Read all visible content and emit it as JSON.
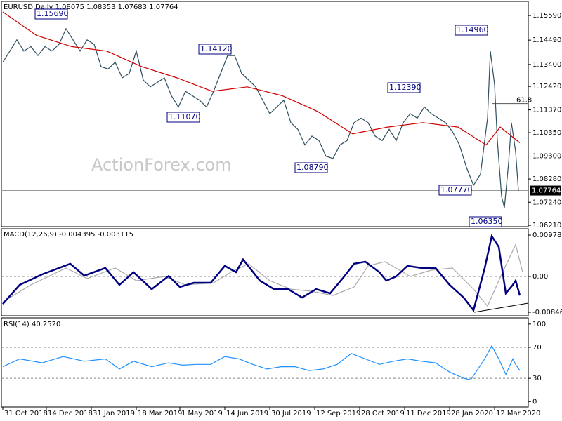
{
  "chart_data": [
    {
      "type": "line",
      "title": "EURUSD,Daily  1.08075 1.08353 1.07683 1.07764",
      "watermark": "ActionForex.com",
      "xlim": [
        -1,
        374
      ],
      "ylim": [
        1.0615,
        1.1622
      ],
      "grid": false,
      "yticks": [
        {
          "value": 1.1559,
          "label": "1.15590"
        },
        {
          "value": 1.1449,
          "label": "1.14490"
        },
        {
          "value": 1.134,
          "label": "1.13400"
        },
        {
          "value": 1.1242,
          "label": "1.12420"
        },
        {
          "value": 1.1137,
          "label": "1.11370"
        },
        {
          "value": 1.1035,
          "label": "1.10350"
        },
        {
          "value": 1.093,
          "label": "1.09300"
        },
        {
          "value": 1.0828,
          "label": "1.08280"
        },
        {
          "value": 1.0724,
          "label": "1.07240"
        },
        {
          "value": 1.0621,
          "label": "1.06210"
        }
      ],
      "last_price": 1.07764,
      "fib_level": {
        "value": 1.1165,
        "label": "61.8"
      },
      "annotations": [
        "1.15690",
        "1.14120",
        "1.11070",
        "1.08790",
        "1.12390",
        "1.14960",
        "1.07770",
        "1.06350"
      ],
      "series": [
        {
          "color": "#2f4f5f",
          "width": 1.2,
          "x": [
            0,
            5,
            10,
            15,
            20,
            25,
            30,
            35,
            40,
            45,
            50,
            55,
            60,
            65,
            70,
            75,
            80,
            85,
            90,
            95,
            100,
            105,
            110,
            115,
            120,
            125,
            130,
            135,
            140,
            145,
            150,
            155,
            160,
            165,
            170,
            175,
            180,
            185,
            190,
            195,
            200,
            205,
            210,
            215,
            220,
            225,
            230,
            235,
            240,
            245,
            250,
            255,
            260,
            265,
            270,
            275,
            280,
            285,
            290,
            295,
            300,
            305,
            310,
            315,
            320,
            325,
            330,
            335,
            340,
            345,
            347,
            350,
            352,
            355,
            357,
            360,
            362,
            365,
            367
          ],
          "values": [
            1.135,
            1.14,
            1.145,
            1.14,
            1.142,
            1.138,
            1.142,
            1.14,
            1.143,
            1.15,
            1.145,
            1.14,
            1.145,
            1.143,
            1.133,
            1.132,
            1.135,
            1.128,
            1.13,
            1.14,
            1.127,
            1.124,
            1.126,
            1.128,
            1.12,
            1.115,
            1.122,
            1.12,
            1.118,
            1.115,
            1.122,
            1.13,
            1.138,
            1.138,
            1.13,
            1.127,
            1.124,
            1.118,
            1.112,
            1.115,
            1.118,
            1.108,
            1.105,
            1.098,
            1.102,
            1.1,
            1.093,
            1.092,
            1.098,
            1.1,
            1.108,
            1.11,
            1.108,
            1.102,
            1.1,
            1.105,
            1.1,
            1.108,
            1.112,
            1.11,
            1.115,
            1.112,
            1.11,
            1.108,
            1.104,
            1.098,
            1.088,
            1.08,
            1.085,
            1.11,
            1.14,
            1.125,
            1.1,
            1.075,
            1.07,
            1.09,
            1.108,
            1.095,
            1.0776
          ]
        },
        {
          "color": "#cc0000",
          "width": 1.2,
          "x": [
            0,
            24,
            49,
            74,
            99,
            124,
            149,
            174,
            199,
            224,
            249,
            274,
            299,
            324,
            344,
            354,
            368
          ],
          "values": [
            1.1575,
            1.147,
            1.142,
            1.14,
            1.133,
            1.128,
            1.122,
            1.124,
            1.12,
            1.113,
            1.103,
            1.106,
            1.108,
            1.106,
            1.098,
            1.106,
            1.099
          ]
        }
      ]
    },
    {
      "type": "line",
      "title": "MACD(12,26,9) -0.004395 -0.003115",
      "xlim": [
        -1,
        374
      ],
      "ylim": [
        -0.00929,
        0.01127
      ],
      "grid": true,
      "yticks": [
        0.00978,
        {
          "value": 0,
          "label": "0.00"
        },
        -0.008464
      ],
      "series": [
        {
          "color": "#aaaaaa",
          "width": 1.2,
          "x": [
            0,
            20,
            45,
            60,
            80,
            95,
            115,
            130,
            150,
            165,
            175,
            190,
            205,
            220,
            235,
            250,
            260,
            272,
            290,
            305,
            320,
            335,
            345,
            355,
            365,
            370
          ],
          "values": [
            -0.006,
            -0.002,
            0.002,
            -0.0005,
            0.002,
            -0.001,
            0,
            -0.002,
            -0.0015,
            0.0015,
            0.003,
            -0.001,
            -0.003,
            -0.0035,
            -0.0045,
            -0.0025,
            0.0025,
            0.0035,
            0,
            0.0015,
            0.002,
            -0.003,
            -0.007,
            0.0005,
            0.0075,
            0.001
          ]
        },
        {
          "color": "#000080",
          "width": 2.5,
          "x": [
            0,
            12,
            28,
            48,
            58,
            73,
            83,
            93,
            106,
            118,
            126,
            136,
            148,
            158,
            166,
            171,
            183,
            193,
            203,
            213,
            223,
            233,
            243,
            250,
            258,
            268,
            273,
            280,
            288,
            298,
            308,
            318,
            328,
            335,
            343,
            348,
            353,
            358,
            363,
            365,
            368
          ],
          "values": [
            -0.0065,
            -0.002,
            0.0005,
            0.003,
            0.0002,
            0.002,
            -0.002,
            0.001,
            -0.003,
            0.0001,
            -0.0025,
            -0.0015,
            -0.0015,
            0.0025,
            0.001,
            0.004,
            -0.001,
            -0.003,
            -0.003,
            -0.005,
            -0.003,
            -0.004,
            0,
            0.003,
            0.0035,
            0.001,
            -0.001,
            0,
            0.0025,
            0.002,
            0.002,
            -0.002,
            -0.005,
            -0.008,
            0.002,
            0.0095,
            0.007,
            -0.004,
            -0.002,
            -0.001,
            -0.0045
          ]
        }
      ]
    },
    {
      "type": "line",
      "title": "RSI(14) 40.2520",
      "xlim": [
        -1,
        374
      ],
      "ylim": [
        -7,
        108
      ],
      "grid": true,
      "yticks": [
        100,
        70,
        30,
        0
      ],
      "xticks": [
        {
          "value": 0,
          "label": "31 Oct 2018"
        },
        {
          "value": 31,
          "label": "14 Dec 2018"
        },
        {
          "value": 63,
          "label": "31 Jan 2019"
        },
        {
          "value": 95,
          "label": "18 Mar 2019"
        },
        {
          "value": 126,
          "label": "1 May 2019"
        },
        {
          "value": 158,
          "label": "14 Jun 2019"
        },
        {
          "value": 190,
          "label": "30 Jul 2019"
        },
        {
          "value": 222,
          "label": "12 Sep 2019"
        },
        {
          "value": 254,
          "label": "28 Oct 2019"
        },
        {
          "value": 286,
          "label": "11 Dec 2019"
        },
        {
          "value": 318,
          "label": "28 Jan 2020"
        },
        {
          "value": 350,
          "label": "12 Mar 2020"
        }
      ],
      "series": [
        {
          "color": "#1e90ff",
          "width": 1.2,
          "x": [
            0,
            12,
            28,
            43,
            58,
            73,
            83,
            93,
            106,
            118,
            128,
            138,
            148,
            158,
            168,
            178,
            188,
            198,
            208,
            218,
            228,
            238,
            248,
            258,
            268,
            278,
            288,
            298,
            308,
            318,
            328,
            333,
            343,
            348,
            353,
            358,
            363,
            365,
            368
          ],
          "values": [
            45,
            55,
            50,
            58,
            52,
            55,
            42,
            52,
            45,
            50,
            47,
            48,
            48,
            58,
            55,
            48,
            42,
            45,
            45,
            40,
            42,
            48,
            62,
            55,
            48,
            52,
            55,
            52,
            50,
            38,
            30,
            28,
            55,
            72,
            55,
            35,
            55,
            48,
            40
          ]
        }
      ]
    }
  ]
}
